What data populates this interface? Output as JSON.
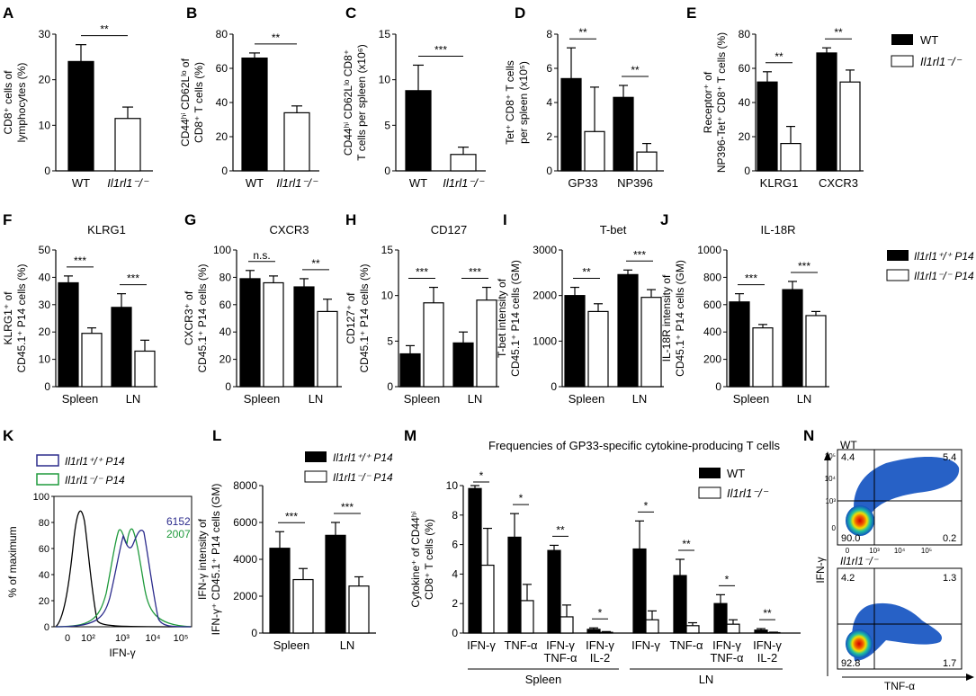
{
  "colors": {
    "wt": "#000000",
    "ko": "#ffffff",
    "axis": "#000000",
    "hist_ctrl": "#000000",
    "hist_wt": "#2b2b8c",
    "hist_ko": "#1f9a3c"
  },
  "legend_top": {
    "wt": "WT",
    "ko": "Il1rl1⁻/⁻"
  },
  "legend_mid": {
    "wt": "Il1rl1⁺/⁺ P14",
    "ko": "Il1rl1⁻/⁻ P14"
  },
  "chart_data": [
    {
      "id": "A",
      "type": "bar",
      "title": "",
      "ylabel": [
        "CD8⁺ cells of",
        "lymphocytes (%)"
      ],
      "ylim": [
        0,
        30
      ],
      "yticks": [
        0,
        10,
        20,
        30
      ],
      "categories": [
        "WT",
        "Il1rl1⁻/⁻"
      ],
      "series": [
        {
          "name": "bars",
          "values": [
            24,
            11.5
          ],
          "errors": [
            3.7,
            2.5
          ],
          "fills": [
            "wt",
            "ko"
          ]
        }
      ],
      "sig": [
        {
          "label": "**"
        }
      ]
    },
    {
      "id": "B",
      "type": "bar",
      "title": "",
      "ylabel": [
        "CD44ʰⁱ CD62Lˡᵒ of",
        "CD8⁺ T cells (%)"
      ],
      "ylim": [
        0,
        80
      ],
      "yticks": [
        0,
        20,
        40,
        60,
        80
      ],
      "categories": [
        "WT",
        "Il1rl1⁻/⁻"
      ],
      "series": [
        {
          "name": "bars",
          "values": [
            66,
            34
          ],
          "errors": [
            3,
            4
          ],
          "fills": [
            "wt",
            "ko"
          ]
        }
      ],
      "sig": [
        {
          "label": "**"
        }
      ]
    },
    {
      "id": "C",
      "type": "bar",
      "title": "",
      "ylabel": [
        "CD44ʰⁱ CD62Lˡᵒ CD8⁺",
        "T cells per spleen (x10⁶)"
      ],
      "ylim": [
        0,
        15
      ],
      "yticks": [
        0,
        5,
        10,
        15
      ],
      "categories": [
        "WT",
        "Il1rl1⁻/⁻"
      ],
      "series": [
        {
          "name": "bars",
          "values": [
            8.8,
            1.8
          ],
          "errors": [
            2.8,
            0.8
          ],
          "fills": [
            "wt",
            "ko"
          ]
        }
      ],
      "sig": [
        {
          "label": "***"
        }
      ]
    },
    {
      "id": "D",
      "type": "bar",
      "title": "",
      "ylabel": [
        "Tet⁺ CD8⁺ T cells",
        "per spleen (x10⁵)"
      ],
      "ylim": [
        0,
        8
      ],
      "yticks": [
        0,
        2,
        4,
        6,
        8
      ],
      "categories": [
        "GP33",
        "NP396"
      ],
      "series": [
        {
          "name": "WT",
          "values": [
            5.4,
            4.3
          ]
        },
        {
          "name": "Il1rl1⁻/⁻",
          "values": [
            2.3,
            1.1
          ]
        }
      ],
      "errors": [
        [
          1.8,
          0.7
        ],
        [
          2.6,
          0.5
        ]
      ],
      "sig": [
        {
          "label": "**"
        },
        {
          "label": "**"
        }
      ]
    },
    {
      "id": "E",
      "type": "bar",
      "title": "",
      "ylabel": [
        "Receptor⁺ of",
        "NP396-Tet⁺ CD8⁺ T cells (%)"
      ],
      "ylim": [
        0,
        80
      ],
      "yticks": [
        0,
        20,
        40,
        60,
        80
      ],
      "categories": [
        "KLRG1",
        "CXCR3"
      ],
      "series": [
        {
          "name": "WT",
          "values": [
            52,
            69
          ]
        },
        {
          "name": "Il1rl1⁻/⁻",
          "values": [
            16,
            52
          ]
        }
      ],
      "errors": [
        [
          6,
          3
        ],
        [
          10,
          7
        ]
      ],
      "sig": [
        {
          "label": "**"
        },
        {
          "label": "**"
        }
      ]
    },
    {
      "id": "F",
      "type": "bar",
      "title": "KLRG1",
      "ylabel": [
        "KLRG1⁺ of",
        "CD45.1⁺ P14 cells (%)"
      ],
      "ylim": [
        0,
        50
      ],
      "yticks": [
        0,
        10,
        20,
        30,
        40,
        50
      ],
      "categories": [
        "Spleen",
        "LN"
      ],
      "series": [
        {
          "name": "Il1rl1⁺/⁺ P14",
          "values": [
            38,
            29
          ]
        },
        {
          "name": "Il1rl1⁻/⁻ P14",
          "values": [
            19.5,
            13
          ]
        }
      ],
      "errors": [
        [
          2.5,
          5
        ],
        [
          2,
          4
        ]
      ],
      "sig": [
        {
          "label": "***"
        },
        {
          "label": "***"
        }
      ]
    },
    {
      "id": "G",
      "type": "bar",
      "title": "CXCR3",
      "ylabel": [
        "CXCR3⁺ of",
        "CD45.1⁺ P14 cells (%)"
      ],
      "ylim": [
        0,
        100
      ],
      "yticks": [
        0,
        20,
        40,
        60,
        80,
        100
      ],
      "categories": [
        "Spleen",
        "LN"
      ],
      "series": [
        {
          "name": "Il1rl1⁺/⁺ P14",
          "values": [
            79,
            73
          ]
        },
        {
          "name": "Il1rl1⁻/⁻ P14",
          "values": [
            76,
            55
          ]
        }
      ],
      "errors": [
        [
          6,
          6
        ],
        [
          5,
          9
        ]
      ],
      "sig": [
        {
          "label": "n.s."
        },
        {
          "label": "**"
        }
      ]
    },
    {
      "id": "H",
      "type": "bar",
      "title": "CD127",
      "ylabel": [
        "CD127⁺ of",
        "CD45.1⁺ P14 cells (%)"
      ],
      "ylim": [
        0,
        15
      ],
      "yticks": [
        0,
        5,
        10,
        15
      ],
      "categories": [
        "Spleen",
        "LN"
      ],
      "series": [
        {
          "name": "Il1rl1⁺/⁺ P14",
          "values": [
            3.6,
            4.8
          ]
        },
        {
          "name": "Il1rl1⁻/⁻ P14",
          "values": [
            9.2,
            9.5
          ]
        }
      ],
      "errors": [
        [
          0.9,
          1.2
        ],
        [
          1.7,
          1.4
        ]
      ],
      "sig": [
        {
          "label": "***"
        },
        {
          "label": "***"
        }
      ]
    },
    {
      "id": "I",
      "type": "bar",
      "title": "T-bet",
      "ylabel": [
        "T-bet intensity of",
        "CD45.1⁺ P14 cells (GM)"
      ],
      "ylim": [
        0,
        3000
      ],
      "yticks": [
        0,
        1000,
        2000,
        3000
      ],
      "categories": [
        "Spleen",
        "LN"
      ],
      "series": [
        {
          "name": "Il1rl1⁺/⁺ P14",
          "values": [
            2000,
            2460
          ]
        },
        {
          "name": "Il1rl1⁻/⁻ P14",
          "values": [
            1650,
            1960
          ]
        }
      ],
      "errors": [
        [
          180,
          100
        ],
        [
          170,
          170
        ]
      ],
      "sig": [
        {
          "label": "**"
        },
        {
          "label": "***"
        }
      ]
    },
    {
      "id": "J",
      "type": "bar",
      "title": "IL-18R",
      "ylabel": [
        "IL-18R intensity of",
        "CD45.1⁺ P14 cells (GM)"
      ],
      "ylim": [
        0,
        1000
      ],
      "yticks": [
        0,
        200,
        400,
        600,
        800,
        1000
      ],
      "categories": [
        "Spleen",
        "LN"
      ],
      "series": [
        {
          "name": "Il1rl1⁺/⁺ P14",
          "values": [
            620,
            710
          ]
        },
        {
          "name": "Il1rl1⁻/⁻ P14",
          "values": [
            430,
            520
          ]
        }
      ],
      "errors": [
        [
          60,
          60
        ],
        [
          25,
          30
        ]
      ],
      "sig": [
        {
          "label": "***"
        },
        {
          "label": "***"
        }
      ]
    },
    {
      "id": "L",
      "type": "bar",
      "title": "",
      "ylabel": [
        "IFN-γ intensity of",
        "IFN-γ⁺ CD45.1⁺ P14 cells (GM)"
      ],
      "ylim": [
        0,
        8000
      ],
      "yticks": [
        0,
        2000,
        4000,
        6000,
        8000
      ],
      "categories": [
        "Spleen",
        "LN"
      ],
      "series": [
        {
          "name": "Il1rl1⁺/⁺ P14",
          "values": [
            4600,
            5300
          ]
        },
        {
          "name": "Il1rl1⁻/⁻ P14",
          "values": [
            2900,
            2550
          ]
        }
      ],
      "errors": [
        [
          900,
          700
        ],
        [
          600,
          500
        ]
      ],
      "sig": [
        {
          "label": "***"
        },
        {
          "label": "***"
        }
      ]
    },
    {
      "id": "M",
      "type": "bar",
      "title": "Frequencies of GP33-specific cytokine-producing T cells",
      "ylabel": [
        "Cytokine⁺ of CD44ʰⁱ",
        "CD8⁺ T cells (%)"
      ],
      "ylim": [
        0,
        10
      ],
      "yticks": [
        0,
        2,
        4,
        6,
        8,
        10
      ],
      "categories": [
        [
          "IFN-γ"
        ],
        [
          "TNF-α"
        ],
        [
          "IFN-γ",
          "TNF-α"
        ],
        [
          "IFN-γ",
          "IL-2"
        ],
        [
          "IFN-γ"
        ],
        [
          "TNF-α"
        ],
        [
          "IFN-γ",
          "TNF-α"
        ],
        [
          "IFN-γ",
          "IL-2"
        ]
      ],
      "groups": [
        "Spleen",
        "LN"
      ],
      "series": [
        {
          "name": "WT",
          "values": [
            9.8,
            6.5,
            5.6,
            0.25,
            5.7,
            3.9,
            2.0,
            0.2
          ]
        },
        {
          "name": "Il1rl1⁻/⁻",
          "values": [
            4.6,
            2.2,
            1.1,
            0.05,
            0.9,
            0.5,
            0.6,
            0.03
          ]
        }
      ],
      "errors": [
        [
          0.2,
          1.6,
          0.35,
          0.1,
          1.9,
          1.1,
          0.6,
          0.1
        ],
        [
          2.5,
          1.1,
          0.8,
          0.05,
          0.6,
          0.2,
          0.3,
          0.03
        ]
      ],
      "sig": [
        {
          "label": "*"
        },
        {
          "label": "*"
        },
        {
          "label": "**"
        },
        {
          "label": "*"
        },
        {
          "label": "*"
        },
        {
          "label": "**"
        },
        {
          "label": "*"
        },
        {
          "label": "**"
        }
      ]
    }
  ],
  "histogram_K": {
    "ylabel": "% of maximum",
    "xlabel": "IFN-γ",
    "yticks": [
      "0",
      "20",
      "40",
      "60",
      "80",
      "100"
    ],
    "xticks": [
      "0",
      "10²",
      "10³",
      "10⁴",
      "10⁵"
    ],
    "legend": [
      {
        "label": "Il1rl1⁺/⁺ P14",
        "color": "hist_wt"
      },
      {
        "label": "Il1rl1⁻/⁻ P14",
        "color": "hist_ko"
      }
    ],
    "gm": [
      {
        "value": "6152",
        "color": "hist_wt"
      },
      {
        "value": "2007",
        "color": "hist_ko"
      }
    ]
  },
  "flow_N": {
    "ylabel": "IFN-γ",
    "xlabel": "TNF-α",
    "plots": [
      {
        "title": "WT",
        "q": [
          "4.4",
          "5.4",
          "90.0",
          "0.2"
        ]
      },
      {
        "title": "Il1rl1⁻/⁻",
        "q": [
          "4.2",
          "1.3",
          "92.8",
          "1.7"
        ]
      }
    ],
    "xticks": [
      "0",
      "10³",
      "10⁴",
      "10⁵"
    ],
    "yticks": [
      "0",
      "10³",
      "10⁴",
      "10⁵"
    ]
  },
  "m_group_labels": [
    "Spleen",
    "LN"
  ]
}
